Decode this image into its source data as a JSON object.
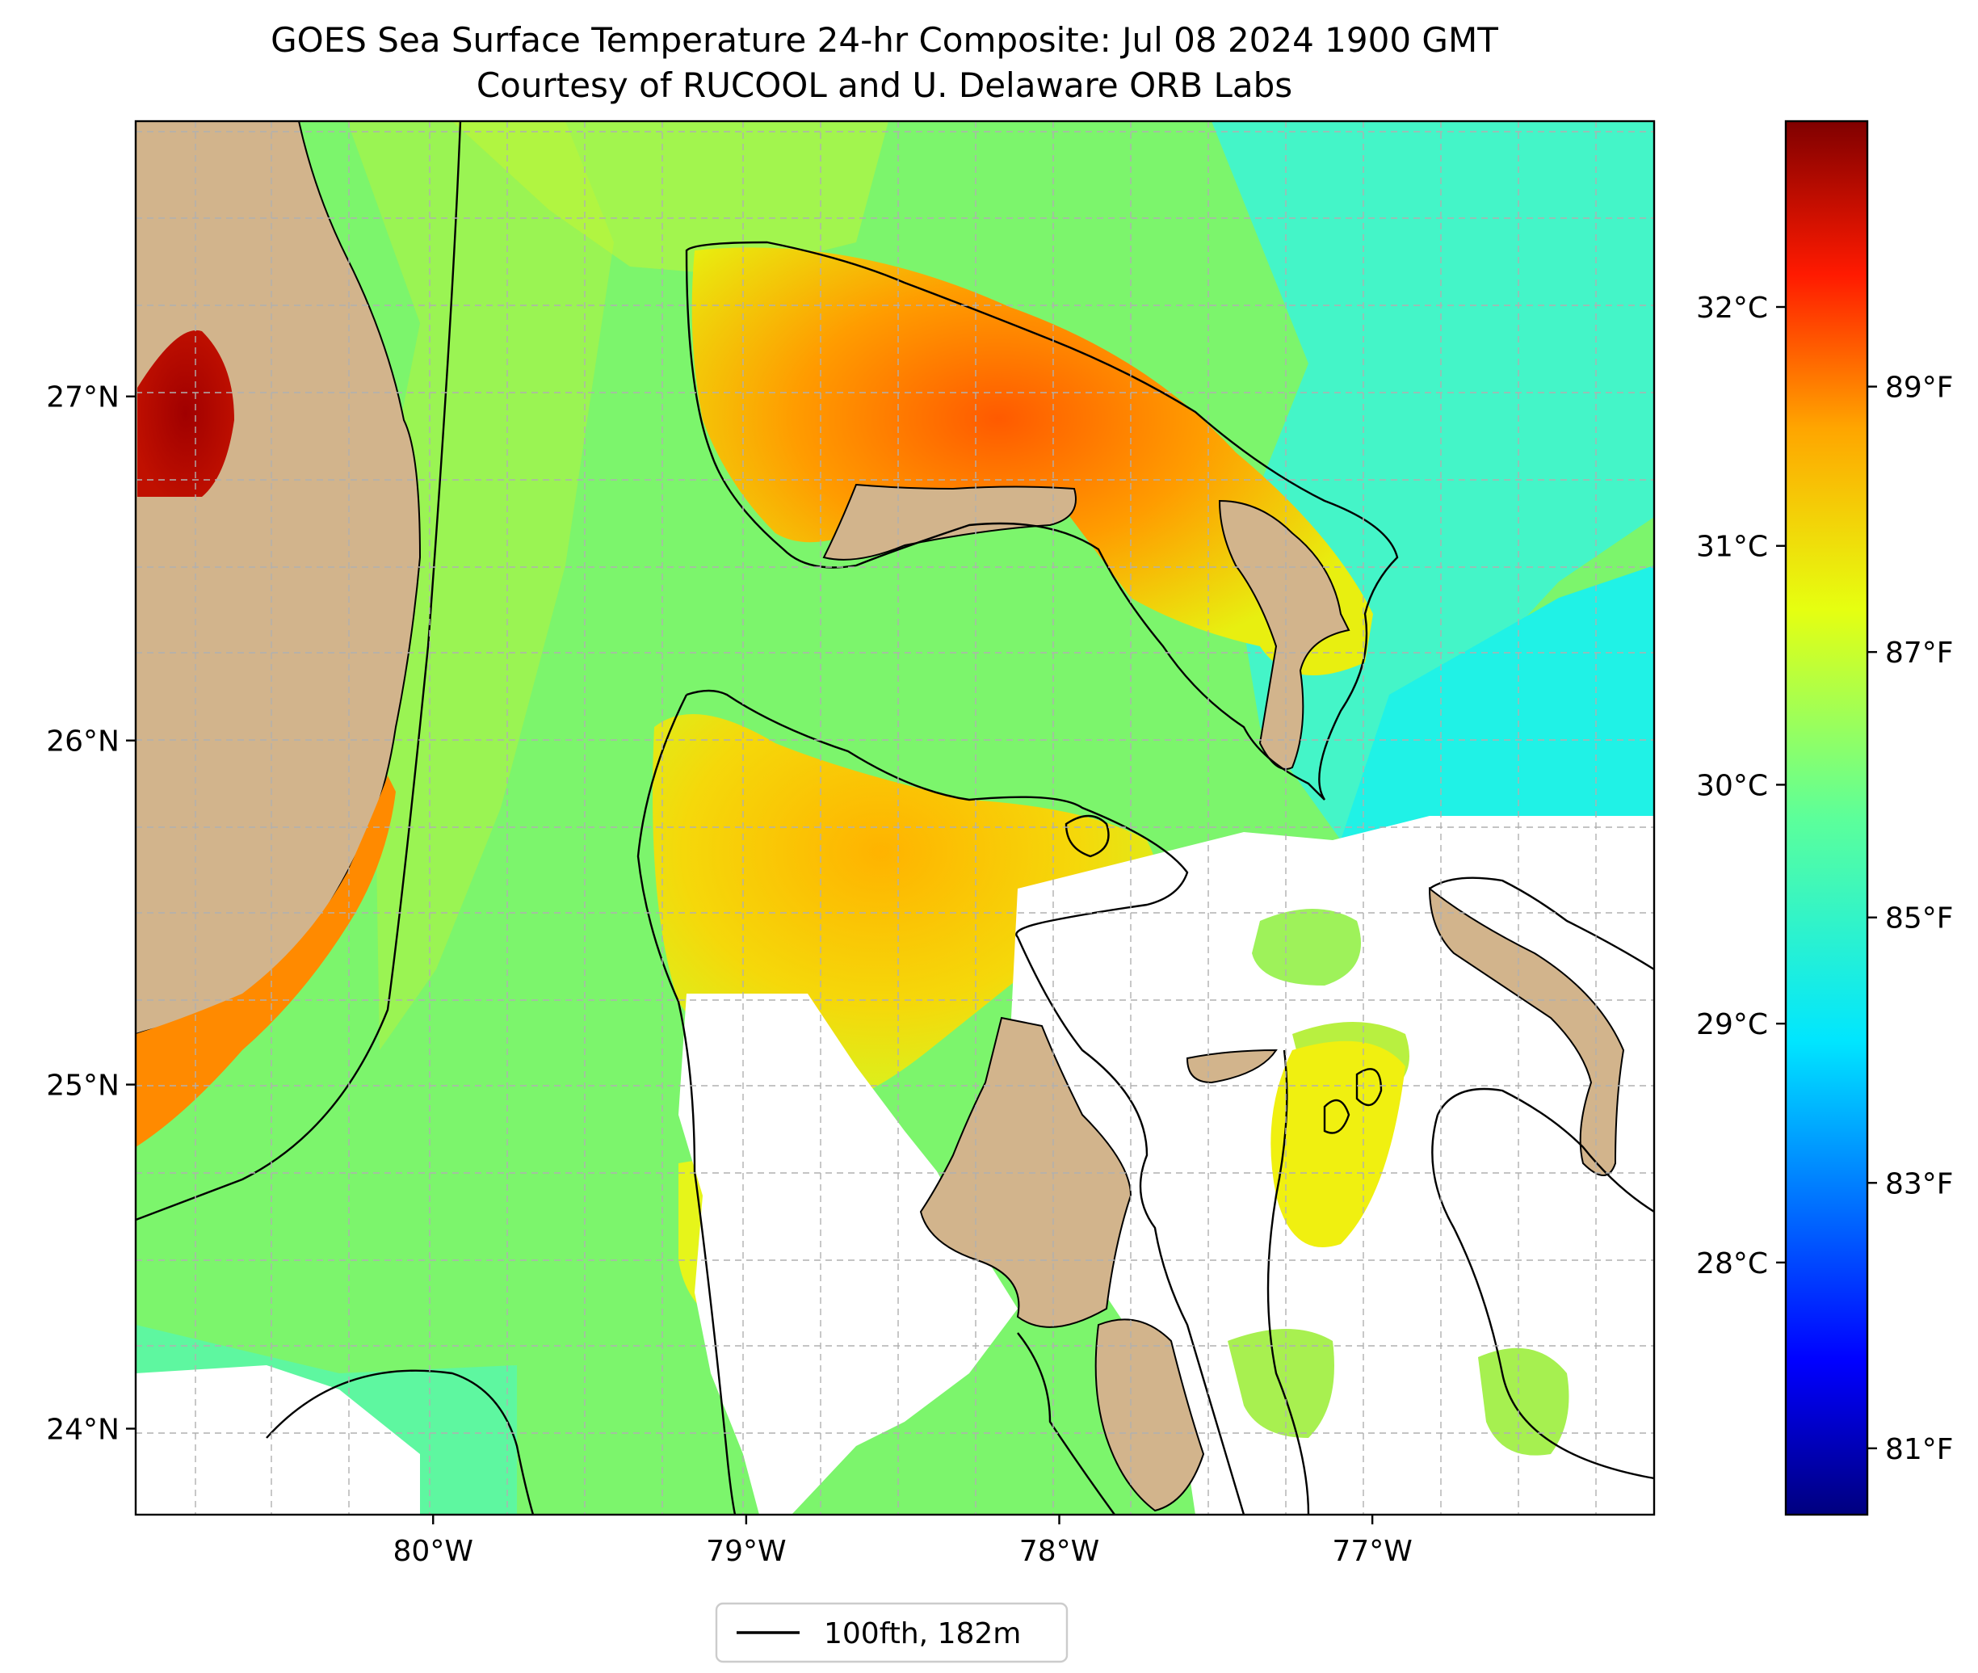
{
  "title": {
    "line1": "GOES Sea Surface Temperature 24-hr Composite: Jul 08 2024 1900 GMT",
    "line2": "Courtesy of RUCOOL and U. Delaware ORB Labs"
  },
  "map": {
    "lon_range": [
      -80.95,
      -76.1
    ],
    "lat_range": [
      23.75,
      27.8
    ],
    "lon_ticks": [
      {
        "value": -80,
        "label": "80°W"
      },
      {
        "value": -79,
        "label": "79°W"
      },
      {
        "value": -78,
        "label": "78°W"
      },
      {
        "value": -77,
        "label": "77°W"
      }
    ],
    "lat_ticks": [
      {
        "value": 24,
        "label": "24°N"
      },
      {
        "value": 25,
        "label": "25°N"
      },
      {
        "value": 26,
        "label": "26°N"
      },
      {
        "value": 27,
        "label": "27°N"
      }
    ],
    "gridlines": true,
    "colors": {
      "land": "#d2b48c",
      "no_data": "#ffffff",
      "contour": "#000000",
      "grid": "#b0b0b0"
    },
    "regions": [
      {
        "name": "Florida",
        "type": "land"
      },
      {
        "name": "Lake Okeechobee",
        "type": "lake-hot"
      },
      {
        "name": "Grand Bahama",
        "type": "land"
      },
      {
        "name": "Abaco",
        "type": "land"
      },
      {
        "name": "Andros",
        "type": "land"
      },
      {
        "name": "New Providence",
        "type": "land"
      },
      {
        "name": "Eleuthera",
        "type": "land"
      },
      {
        "name": "Great Bahama Bank",
        "type": "warm-sst"
      },
      {
        "name": "Little Bahama Bank",
        "type": "hot-sst"
      }
    ]
  },
  "colorbar": {
    "colormap": "jet",
    "celsius_ticks": [
      {
        "value": 28,
        "label": "28°C"
      },
      {
        "value": 29,
        "label": "29°C"
      },
      {
        "value": 30,
        "label": "30°C"
      },
      {
        "value": 31,
        "label": "31°C"
      },
      {
        "value": 32,
        "label": "32°C"
      }
    ],
    "fahrenheit_ticks": [
      {
        "value": 81,
        "label": "81°F"
      },
      {
        "value": 83,
        "label": "83°F"
      },
      {
        "value": 85,
        "label": "85°F"
      },
      {
        "value": 87,
        "label": "87°F"
      },
      {
        "value": 89,
        "label": "89°F"
      }
    ],
    "range_f": [
      80.5,
      91.0
    ]
  },
  "legend": {
    "entries": [
      {
        "label": "100fth, 182m",
        "color": "#000000"
      }
    ]
  }
}
